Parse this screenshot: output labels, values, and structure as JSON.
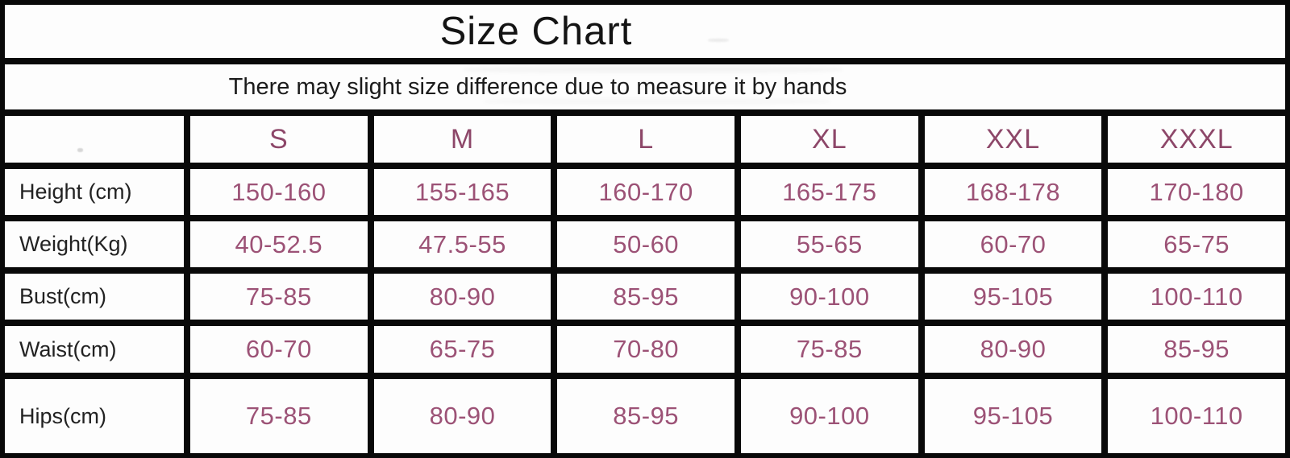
{
  "title": "Size Chart",
  "subtitle": "There may slight size difference due to measure it by hands",
  "colors": {
    "background": "#fdfdfd",
    "grid_border": "#090909",
    "title_text": "#141414",
    "label_text": "#222222",
    "size_header_text": "#8d4769",
    "value_text": "#9c5276"
  },
  "chart_data": {
    "type": "table",
    "title": "Size Chart",
    "note": "There may slight size difference due to measure it by hands",
    "columns": [
      "",
      "S",
      "M",
      "L",
      "XL",
      "XXL",
      "XXXL"
    ],
    "rows": [
      {
        "label": "Height (cm)",
        "values": [
          "150-160",
          "155-165",
          "160-170",
          "165-175",
          "168-178",
          "170-180"
        ]
      },
      {
        "label": "Weight(Kg)",
        "values": [
          "40-52.5",
          "47.5-55",
          "50-60",
          "55-65",
          "60-70",
          "65-75"
        ]
      },
      {
        "label": "Bust(cm)",
        "values": [
          "75-85",
          "80-90",
          "85-95",
          "90-100",
          "95-105",
          "100-110"
        ]
      },
      {
        "label": "Waist(cm)",
        "values": [
          "60-70",
          "65-75",
          "70-80",
          "75-85",
          "80-90",
          "85-95"
        ]
      },
      {
        "label": "Hips(cm)",
        "values": [
          "75-85",
          "80-90",
          "85-95",
          "90-100",
          "95-105",
          "100-110"
        ]
      }
    ]
  }
}
